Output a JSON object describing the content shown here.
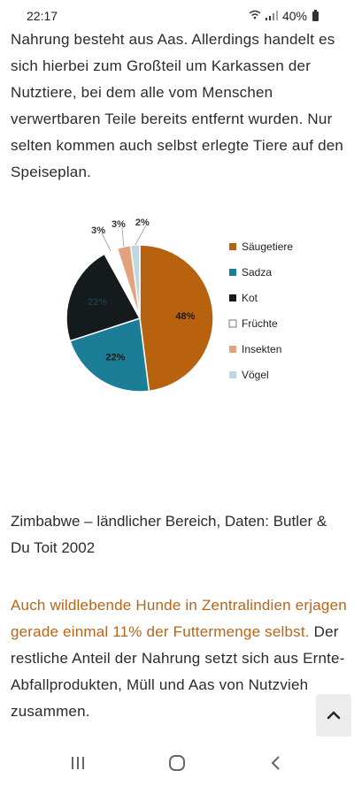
{
  "status_bar": {
    "time": "22:17",
    "battery": "40%"
  },
  "article": {
    "paragraph1": "Nahrung besteht aus Aas. Allerdings handelt es sich hierbei zum Großteil um Karkassen der Nutztiere, bei dem alle vom Menschen verwertbaren Teile bereits entfernt wurden. Nur selten kommen auch selbst erlegte Tiere auf den Speiseplan.",
    "caption": "Zimbabwe – ländlicher Bereich, Daten: Butler & Du Toit 2002",
    "paragraph2_highlight": "Auch wildlebende Hunde in Zentralindien erjagen gerade einmal 11% der Futtermenge selbst.",
    "paragraph2_rest": " Der restliche Anteil der Nahrung setzt sich aus Ernte-Abfallprodukten, Müll und Aas von Nutzvieh zusammen."
  },
  "chart_data": {
    "type": "pie",
    "legend_position": "right",
    "slices": [
      {
        "label": "Säugetiere",
        "value": 48,
        "display": "48%",
        "color": "#b8620f"
      },
      {
        "label": "Sadza",
        "value": 22,
        "display": "22%",
        "color": "#1c7d96"
      },
      {
        "label": "Kot",
        "value": 22,
        "display": "22%",
        "color": "#151a1c"
      },
      {
        "label": "Früchte",
        "value": 3,
        "display": "3%",
        "color": "#ffffff"
      },
      {
        "label": "Insekten",
        "value": 3,
        "display": "3%",
        "color": "#e0a37e"
      },
      {
        "label": "Vögel",
        "value": 2,
        "display": "2%",
        "color": "#bfd6dc"
      }
    ]
  },
  "colors": {
    "accent_text": "#b8651a",
    "scroll_button_bg": "#ececec"
  },
  "icons": {
    "scroll_top": "chevron-up-icon",
    "nav": [
      "recent-apps-icon",
      "home-icon",
      "back-icon"
    ],
    "status": [
      "wifi-icon",
      "signal-icon",
      "battery-icon"
    ]
  }
}
